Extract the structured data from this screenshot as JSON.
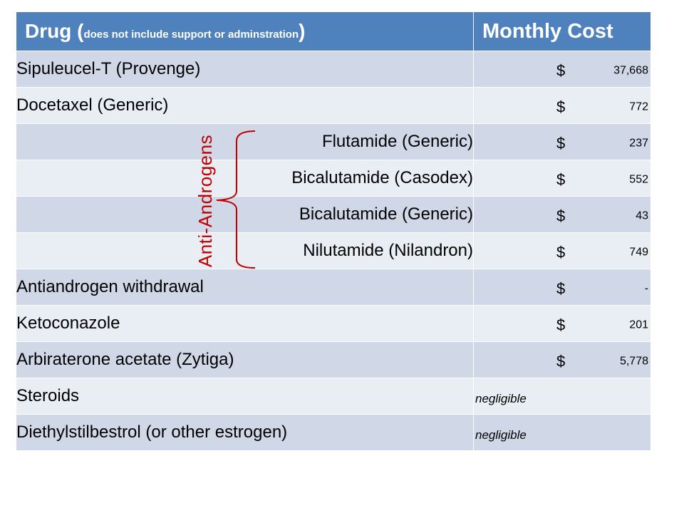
{
  "header": {
    "drug_prefix": "Drug (",
    "drug_note": "does not include support or adminstration",
    "drug_suffix": ")",
    "cost": "Monthly Cost"
  },
  "rows": [
    {
      "name": "Sipuleucel-T (Provenge)",
      "currency": "$",
      "amount": "37,668"
    },
    {
      "name": "Docetaxel (Generic)",
      "currency": "$",
      "amount": "772"
    },
    {
      "name": "Flutamide (Generic)",
      "currency": "$",
      "amount": "237"
    },
    {
      "name": "Bicalutamide (Casodex)",
      "currency": "$",
      "amount": "552"
    },
    {
      "name": "Bicalutamide (Generic)",
      "currency": "$",
      "amount": "43"
    },
    {
      "name": "Nilutamide (Nilandron)",
      "currency": "$",
      "amount": "749"
    },
    {
      "name": "Antiandrogen withdrawal",
      "currency": "$",
      "amount": "-"
    },
    {
      "name": "Ketoconazole",
      "currency": "$",
      "amount": "201"
    },
    {
      "name": "Arbiraterone acetate (Zytiga)",
      "currency": "$",
      "amount": "5,778"
    },
    {
      "name": "Steroids",
      "cost_text": "negligible"
    },
    {
      "name": "Diethylstilbestrol (or other estrogen)",
      "cost_text": "negligible"
    }
  ],
  "annotation": {
    "label": "Anti-Androgens",
    "color": "#c00000"
  },
  "colors": {
    "header": "#4f81bd",
    "row_odd": "#d0d8e8",
    "row_even": "#e9edf4"
  }
}
